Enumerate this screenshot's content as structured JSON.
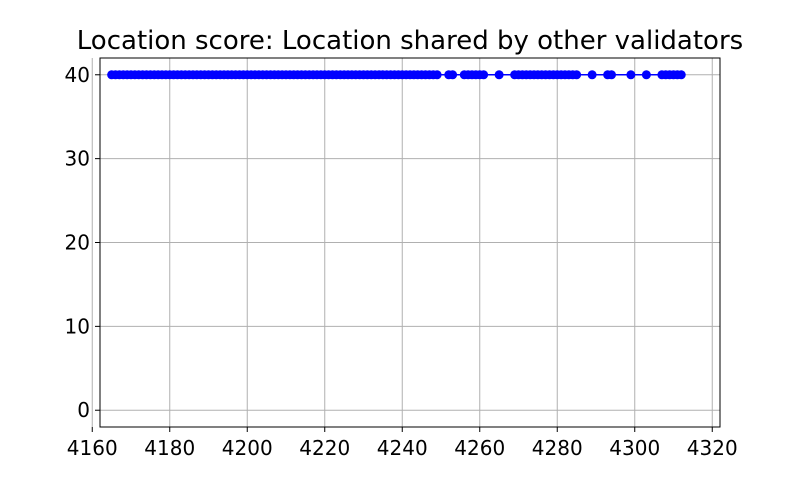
{
  "chart_data": {
    "type": "line",
    "title": "Location score: Location shared by other validators",
    "xlabel": "",
    "ylabel": "",
    "xlim": [
      4162,
      4322
    ],
    "ylim": [
      -2,
      42
    ],
    "xticks": [
      4160,
      4180,
      4200,
      4220,
      4240,
      4260,
      4280,
      4300,
      4320
    ],
    "yticks": [
      0,
      10,
      20,
      30,
      40
    ],
    "grid": true,
    "legend": "none",
    "colors": {
      "series": "#0000ff",
      "grid": "#b0b0b0"
    },
    "series": [
      {
        "marker": "circle",
        "x": [
          4165,
          4166,
          4167,
          4168,
          4169,
          4170,
          4171,
          4172,
          4173,
          4174,
          4175,
          4176,
          4177,
          4178,
          4179,
          4180,
          4181,
          4182,
          4183,
          4184,
          4185,
          4186,
          4187,
          4188,
          4189,
          4190,
          4191,
          4192,
          4193,
          4194,
          4195,
          4196,
          4197,
          4198,
          4199,
          4200,
          4201,
          4202,
          4203,
          4204,
          4205,
          4206,
          4207,
          4208,
          4209,
          4210,
          4211,
          4212,
          4213,
          4214,
          4215,
          4216,
          4217,
          4218,
          4219,
          4220,
          4221,
          4222,
          4223,
          4224,
          4225,
          4226,
          4227,
          4228,
          4229,
          4230,
          4231,
          4232,
          4233,
          4234,
          4235,
          4236,
          4237,
          4238,
          4239,
          4240,
          4241,
          4242,
          4243,
          4244,
          4245,
          4246,
          4247,
          4248,
          4249,
          4252,
          4253,
          4256,
          4257,
          4258,
          4259,
          4260,
          4261,
          4265,
          4269,
          4270,
          4271,
          4272,
          4273,
          4274,
          4275,
          4276,
          4277,
          4278,
          4279,
          4280,
          4281,
          4282,
          4283,
          4284,
          4285,
          4289,
          4293,
          4294,
          4299,
          4303,
          4307,
          4308,
          4309,
          4310,
          4311,
          4312
        ],
        "y": "all 40",
        "line_end_x": 4313
      }
    ]
  }
}
